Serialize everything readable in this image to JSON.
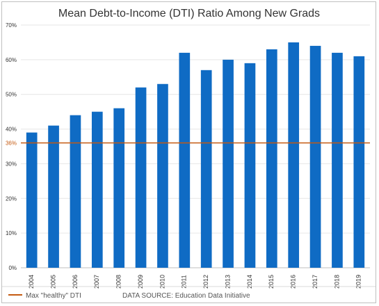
{
  "chart_data": {
    "type": "bar",
    "title": "Mean Debt-to-Income (DTI) Ratio Among New Grads",
    "categories": [
      "2004",
      "2005",
      "2006",
      "2007",
      "2008",
      "2009",
      "2010",
      "2011",
      "2012",
      "2013",
      "2014",
      "2015",
      "2016",
      "2017",
      "2018",
      "2019"
    ],
    "values": [
      39,
      41,
      44,
      45,
      46,
      52,
      53,
      62,
      57,
      60,
      59,
      63,
      65,
      64,
      62,
      61
    ],
    "value_unit": "%",
    "ylim": [
      0,
      70
    ],
    "yticks": [
      "0%",
      "10%",
      "20%",
      "30%",
      "40%",
      "50%",
      "60%",
      "70%"
    ],
    "ytick_values": [
      0,
      10,
      20,
      30,
      40,
      50,
      60,
      70
    ],
    "grid": "horizontal",
    "reference_line": {
      "value": 36,
      "label": "36%",
      "legend": "Max \"healthy\" DTI",
      "color": "#c55a11"
    },
    "bar_color": "#0f6bc4",
    "source": "DATA SOURCE: Education Data Initiative",
    "legend_position": "bottom-left"
  }
}
